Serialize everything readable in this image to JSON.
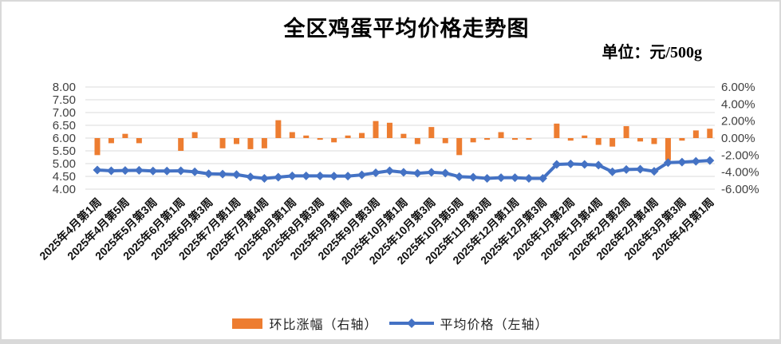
{
  "page": {
    "title": "全区鸡蛋平均价格走势图",
    "unit_label": "单位：元/500g"
  },
  "legend": [
    {
      "label": "环比涨幅（右轴）",
      "color": "#ED7D31",
      "type": "bar"
    },
    {
      "label": "平均价格（左轴）",
      "color": "#4472C4",
      "type": "line"
    }
  ],
  "chart_data": {
    "type": "combo",
    "title": "全区鸡蛋平均价格走势图",
    "unit": "单位：元/500g",
    "x_labels_visible": [
      "2025年4月第1周",
      "2025年4月第5周",
      "2025年5月第3周",
      "2025年6月第1周",
      "2025年6月第3周",
      "2025年7月第1周",
      "2025年7月第4周",
      "2025年8月第1周",
      "2025年8月第3周",
      "2025年9月第1周",
      "2025年9月第3周",
      "2025年10月第1周",
      "2025年10月第3周",
      "2025年10月第5周",
      "2025年11月第3周",
      "2025年12月第1周",
      "2025年12月第3周",
      "2026年1月第2周",
      "2026年1月第4周",
      "2026年2月第2周",
      "2026年2月第4周",
      "2026年3月第3周",
      "2026年4月第1周"
    ],
    "x_label_interval": 2,
    "series": [
      {
        "name": "环比涨幅（右轴）",
        "type": "bar",
        "axis": "right",
        "color": "#ED7D31",
        "values": [
          -2.0,
          -0.6,
          0.5,
          -0.6,
          0,
          0,
          -1.5,
          0.7,
          0,
          -1.2,
          -0.7,
          -1.3,
          -1.2,
          2.1,
          0.7,
          0.3,
          -0.2,
          -0.5,
          0.3,
          0.6,
          2.0,
          1.8,
          0.5,
          -0.7,
          1.3,
          -0.6,
          -2.0,
          -0.5,
          -0.2,
          0.7,
          -0.2,
          -0.2,
          0,
          1.7,
          -0.3,
          0.3,
          -0.8,
          -1.0,
          1.4,
          -0.4,
          -0.7,
          -2.6,
          -0.3,
          0.9,
          1.1
        ]
      },
      {
        "name": "平均价格（左轴）",
        "type": "line",
        "axis": "left",
        "color": "#4472C4",
        "values": [
          4.75,
          4.72,
          4.73,
          4.74,
          4.71,
          4.71,
          4.72,
          4.68,
          4.6,
          4.59,
          4.57,
          4.48,
          4.42,
          4.47,
          4.52,
          4.52,
          4.52,
          4.51,
          4.51,
          4.56,
          4.64,
          4.72,
          4.66,
          4.62,
          4.66,
          4.63,
          4.49,
          4.47,
          4.42,
          4.45,
          4.45,
          4.42,
          4.42,
          4.97,
          4.99,
          4.97,
          4.94,
          4.68,
          4.77,
          4.78,
          4.7,
          5.04,
          5.06,
          5.09,
          5.12
        ]
      }
    ],
    "left_axis": {
      "min": 4.0,
      "max": 8.0,
      "step": 0.5,
      "ticks": [
        "8.00",
        "7.50",
        "7.00",
        "6.50",
        "6.00",
        "5.50",
        "5.00",
        "4.50",
        "4.00"
      ]
    },
    "right_axis": {
      "min": -6.0,
      "max": 6.0,
      "step": 2.0,
      "ticks": [
        "6.00%",
        "4.00%",
        "2.00%",
        "0.00%",
        "-2.00%",
        "-4.00%",
        "-6.00%"
      ]
    },
    "grid": true,
    "gridline_color": "#e2e2e2",
    "legend_position": "bottom"
  }
}
